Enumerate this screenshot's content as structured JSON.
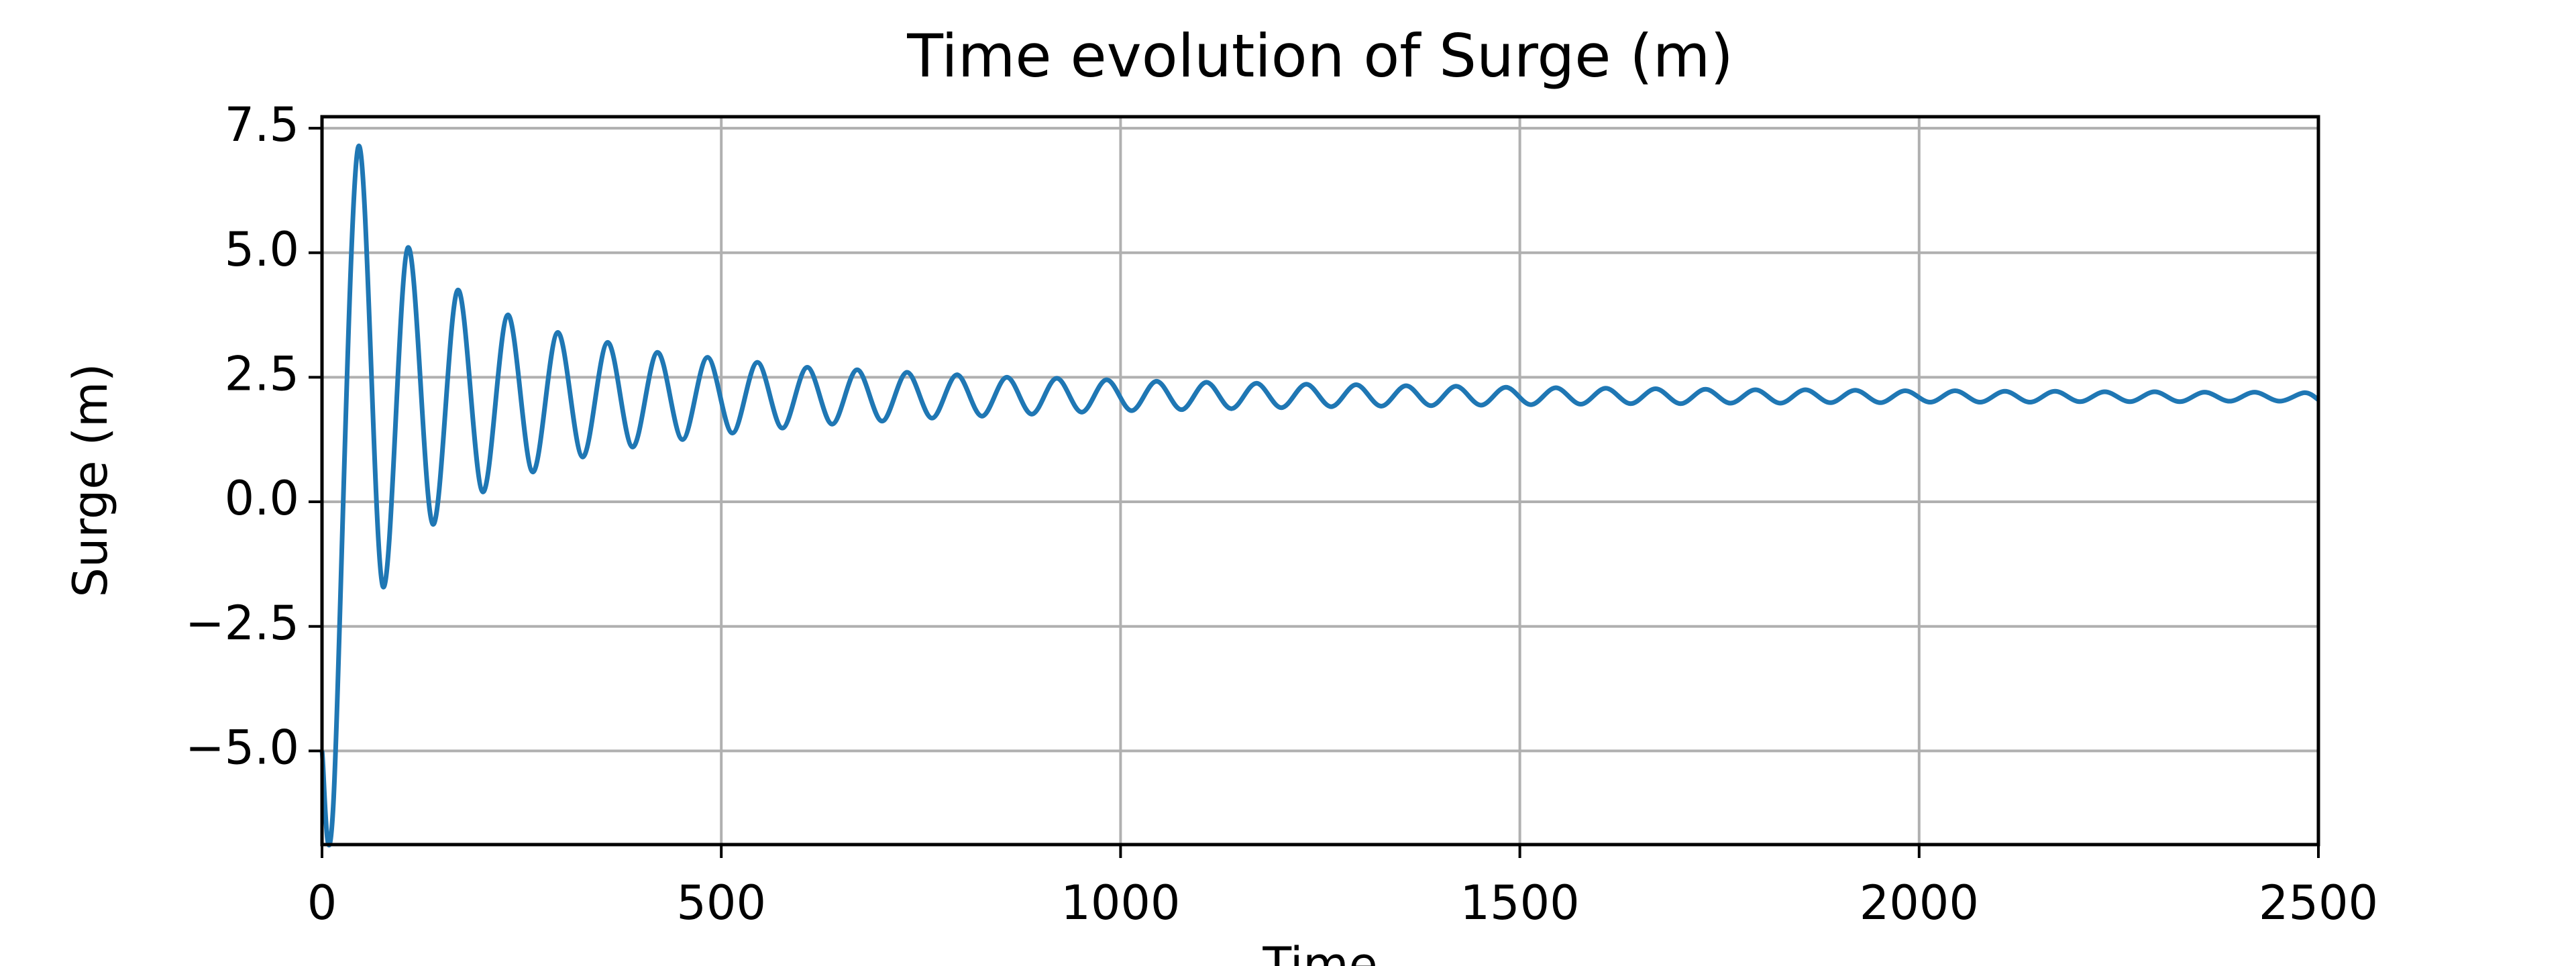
{
  "chart_data": {
    "type": "line",
    "title": "Time evolution of Surge (m)",
    "xlabel": "Time",
    "ylabel": "Surge (m)",
    "xlim": [
      0,
      2500
    ],
    "ylim": [
      -6.88,
      7.73
    ],
    "xticks": [
      0,
      500,
      1000,
      1500,
      2000,
      2500
    ],
    "yticks": [
      {
        "value": -5,
        "label": "−5.0"
      },
      {
        "value": -2.5,
        "label": "−2.5"
      },
      {
        "value": 0,
        "label": "0.0"
      },
      2.5,
      {
        "value": 5,
        "label": "5.0"
      },
      7.5
    ],
    "grid": true,
    "color": "#1f77b4",
    "x": [
      0,
      13.75,
      45,
      76.25,
      107.5,
      138.75,
      170,
      201.25,
      232.5,
      263.75,
      295,
      326.25,
      357.5,
      388.75,
      420,
      451.25,
      482.5,
      513.75,
      545,
      576.25,
      607.5,
      638.75,
      670,
      701.25,
      732.5,
      763.75,
      795,
      826.25,
      857.5,
      888.75,
      920,
      951.25,
      982.5,
      1013.75,
      1045,
      1076.25,
      1107.5,
      1138.75,
      1170,
      1201.25,
      1232.5,
      1263.75,
      1295,
      1326.25,
      1357.5,
      1388.75,
      1420,
      1451.25,
      1482.5,
      1513.75,
      1545,
      1576.25,
      1607.5,
      1638.75,
      1670,
      1701.25,
      1732.5,
      1763.75,
      1795,
      1826.25,
      1857.5,
      1888.75,
      1920,
      1951.25,
      1982.5,
      2013.75,
      2045,
      2076.25,
      2107.5,
      2138.75,
      2170,
      2201.25,
      2232.5,
      2263.75,
      2295,
      2326.25,
      2357.5,
      2388.75,
      2420,
      2451.25,
      2482.5,
      2500
    ],
    "values": [
      -5.0,
      -6.2,
      7.1,
      -1.7,
      5.1,
      -0.45,
      4.25,
      0.2,
      3.75,
      0.6,
      3.4,
      0.9,
      3.2,
      1.1,
      3.0,
      1.25,
      2.9,
      1.38,
      2.8,
      1.48,
      2.7,
      1.56,
      2.65,
      1.62,
      2.6,
      1.68,
      2.55,
      1.72,
      2.5,
      1.76,
      2.48,
      1.8,
      2.45,
      1.83,
      2.42,
      1.85,
      2.4,
      1.87,
      2.38,
      1.89,
      2.36,
      1.91,
      2.35,
      1.92,
      2.33,
      1.93,
      2.32,
      1.94,
      2.3,
      1.95,
      2.29,
      1.96,
      2.28,
      1.97,
      2.27,
      1.97,
      2.26,
      1.98,
      2.25,
      1.98,
      2.25,
      1.99,
      2.24,
      1.99,
      2.23,
      2.0,
      2.23,
      2.0,
      2.22,
      2.0,
      2.22,
      2.01,
      2.21,
      2.01,
      2.21,
      2.01,
      2.2,
      2.02,
      2.2,
      2.02,
      2.19,
      2.05
    ]
  }
}
